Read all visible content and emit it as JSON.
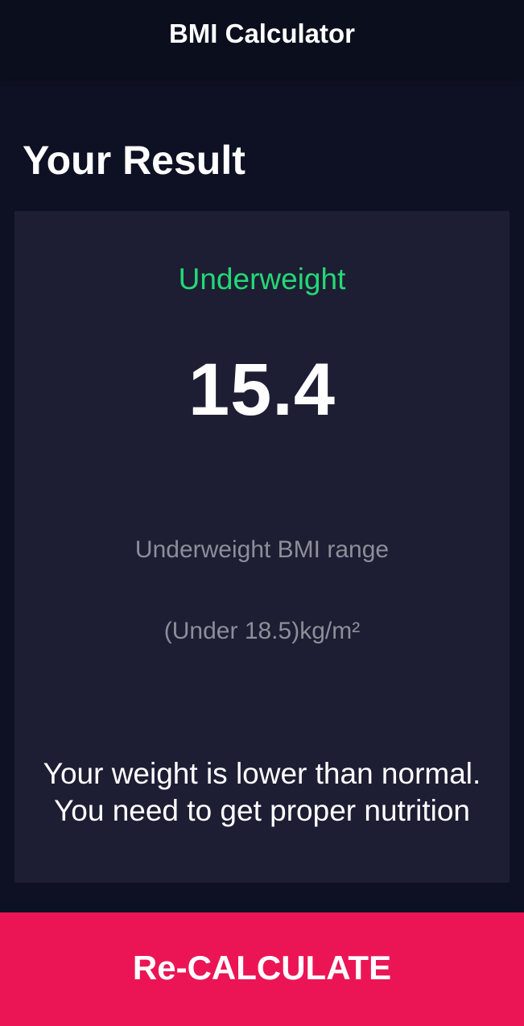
{
  "app_bar": {
    "title": "BMI Calculator"
  },
  "page": {
    "heading": "Your Result"
  },
  "result_card": {
    "category": "Underweight",
    "bmi_value": "15.4",
    "range_label": "Underweight BMI range",
    "range_value": "(Under 18.5)kg/m²",
    "advice_line1": "Your weight is lower than normal.",
    "advice_line2": "You need to get proper nutrition"
  },
  "bottom_button": {
    "label": "Re-CALCULATE"
  },
  "colors": {
    "background": "#0e1123",
    "app_bar": "#0a0e1d",
    "card": "#1d1e33",
    "category_green": "#24d876",
    "secondary_text": "#8d8e98",
    "accent_pink": "#eb1555"
  }
}
